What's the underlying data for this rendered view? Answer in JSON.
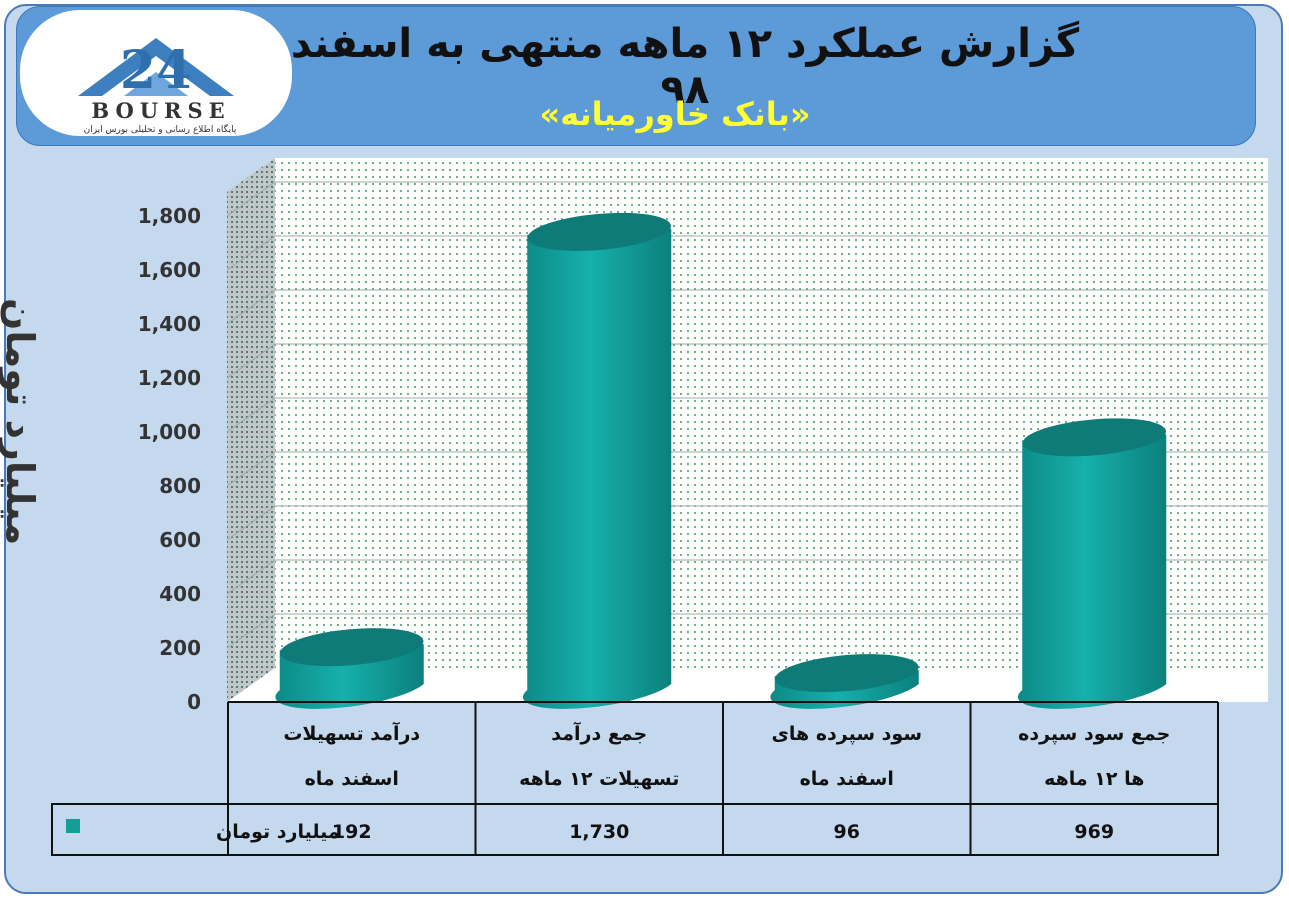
{
  "header": {
    "title": "گزارش عملکرد ۱۲ ماهه منتهی به اسفند ۹۸",
    "subtitle": "«بانک خاورمیانه»"
  },
  "logo": {
    "number": "24",
    "text": "BOURSE",
    "subtext": "پایگاه اطلاع رسانی و تحلیلی بورس ایران"
  },
  "colors": {
    "bar": "#139e9a",
    "bar_top": "#0e7b78",
    "banner": "#5d9ad8",
    "subtitle": "#ffff33"
  },
  "chart_data": {
    "type": "bar",
    "categories": [
      [
        "درآمد تسهیلات",
        "اسفند ماه"
      ],
      [
        "جمع درآمد",
        "تسهیلات ۱۲ ماهه"
      ],
      [
        "سود سپرده های",
        "اسفند ماه"
      ],
      [
        "جمع سود سپرده",
        "ها ۱۲ ماهه"
      ]
    ],
    "series": [
      {
        "name": "میلیارد تومان",
        "values": [
          192,
          1730,
          96,
          969
        ],
        "labels": [
          "192",
          "1,730",
          "96",
          "969"
        ]
      }
    ],
    "ylabel": "میلیارد تومان",
    "ylim": [
      0,
      1800
    ],
    "yticks": [
      "0",
      "200",
      "400",
      "600",
      "800",
      "1,000",
      "1,200",
      "1,400",
      "1,600",
      "1,800"
    ],
    "grid": true,
    "legend": "data-table"
  }
}
